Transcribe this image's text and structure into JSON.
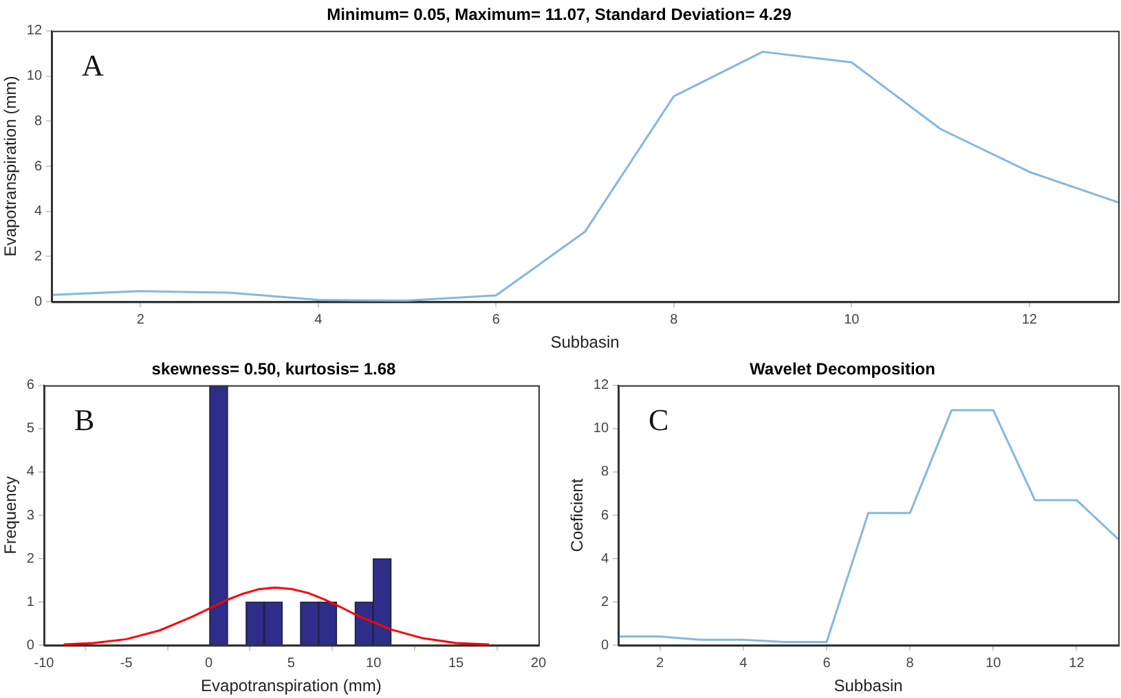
{
  "chart_data": [
    {
      "type": "line",
      "title": "Minimum= 0.05, Maximum= 11.07, Standard Deviation= 4.29",
      "xlabel": "Subbasin",
      "ylabel": "Evapotranspiration (mm)",
      "annotations": [
        "A"
      ],
      "x": [
        1,
        2,
        3,
        4,
        5,
        6,
        7,
        8,
        9,
        10,
        11,
        12,
        13
      ],
      "series": [
        {
          "color": "#82b8e3",
          "values": [
            0.3,
            0.47,
            0.4,
            0.08,
            0.05,
            0.28,
            3.1,
            9.1,
            11.07,
            10.6,
            7.65,
            5.75,
            4.4
          ]
        }
      ],
      "xlim": [
        1,
        13
      ],
      "xticks": [
        2,
        4,
        6,
        8,
        10,
        12
      ],
      "ylim": [
        0,
        12
      ],
      "yticks": [
        0,
        2,
        4,
        6,
        8,
        10,
        12
      ],
      "grid": false,
      "legend": false,
      "marker": "none"
    },
    {
      "type": "histogram",
      "title": "skewness= 0.50, kurtosis= 1.68",
      "xlabel": "Evapotranspiration (mm)",
      "ylabel": "Frequency",
      "annotations": [
        "B"
      ],
      "bins": [
        0.05,
        1.15,
        2.26,
        3.36,
        4.46,
        5.56,
        6.66,
        7.76,
        8.87,
        9.97,
        11.07
      ],
      "series": [
        {
          "color": "#2e2e8a",
          "values": [
            6,
            0,
            1,
            1,
            0,
            1,
            1,
            0,
            1,
            2
          ]
        },
        {
          "type": "line",
          "color": "#ff0000",
          "x": [
            -8.8,
            -7,
            -5,
            -3,
            -1,
            0,
            1,
            2,
            3,
            4,
            5,
            6,
            7,
            8,
            9,
            11,
            13,
            15,
            17
          ],
          "values": [
            0.02,
            0.05,
            0.14,
            0.34,
            0.66,
            0.84,
            1.03,
            1.18,
            1.29,
            1.33,
            1.3,
            1.21,
            1.06,
            0.88,
            0.69,
            0.37,
            0.16,
            0.05,
            0.02
          ]
        }
      ],
      "xlim": [
        -10,
        20
      ],
      "xticks": [
        -10,
        -5,
        0,
        5,
        10,
        15,
        20
      ],
      "ylim": [
        0,
        6
      ],
      "yticks": [
        0,
        1,
        2,
        3,
        4,
        5,
        6
      ],
      "grid": false,
      "legend": false,
      "marker": "none"
    },
    {
      "type": "line",
      "title": "Wavelet Decomposition",
      "xlabel": "Subbasin",
      "ylabel": "Coeficient",
      "annotations": [
        "C"
      ],
      "x": [
        1,
        2,
        3,
        4,
        5,
        6,
        7,
        8,
        9,
        10,
        11,
        12,
        13
      ],
      "series": [
        {
          "color": "#82b8e3",
          "values": [
            0.4,
            0.4,
            0.25,
            0.25,
            0.15,
            0.15,
            6.1,
            6.1,
            10.85,
            10.85,
            6.7,
            6.7,
            4.9
          ]
        }
      ],
      "xlim": [
        1,
        13
      ],
      "xticks": [
        2,
        4,
        6,
        8,
        10,
        12
      ],
      "ylim": [
        0,
        12
      ],
      "yticks": [
        0,
        2,
        4,
        6,
        8,
        10,
        12
      ],
      "grid": false,
      "legend": false,
      "marker": "none"
    }
  ]
}
